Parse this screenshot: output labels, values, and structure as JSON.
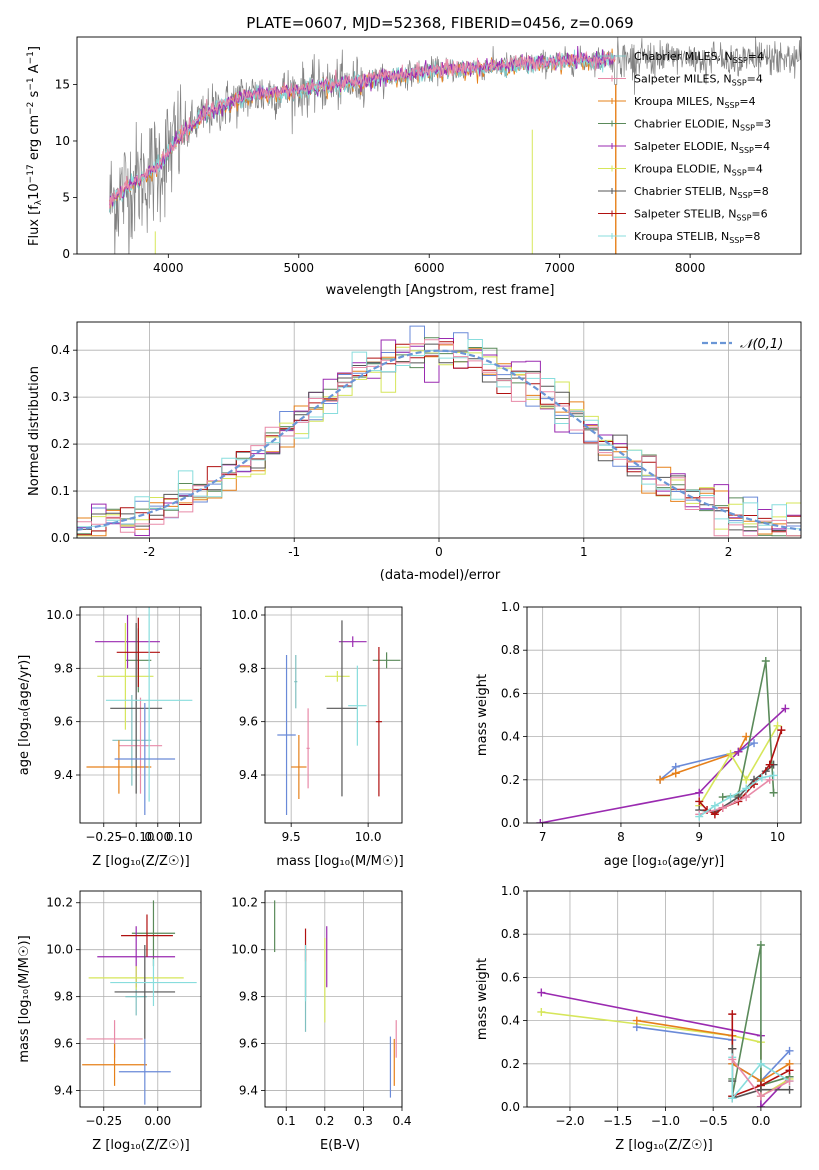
{
  "title": "PLATE=0607, MJD=52368, FIBERID=0456, z=0.069",
  "colors": [
    "#7fbfbf",
    "#e88aa8",
    "#e6801a",
    "#5a8a5a",
    "#9a2ab0",
    "#d6e65a",
    "#555555",
    "#b01010",
    "#88dddd",
    "#6a8ad8"
  ],
  "chart_data": [
    {
      "id": "spectrum",
      "type": "line",
      "title": "PLATE=0607, MJD=52368, FIBERID=0456, z=0.069",
      "xlabel": "wavelength [Angstrom, rest frame]",
      "ylabel": "Flux [fλ10⁻¹⁷ erg cm⁻² s⁻¹ A⁻¹]",
      "xlim": [
        3300,
        8850
      ],
      "ylim": [
        0,
        19.2
      ],
      "xticks": [
        4000,
        5000,
        6000,
        7000,
        8000
      ],
      "yticks": [
        0,
        5,
        10,
        15
      ],
      "grid": false,
      "legend_position": "right",
      "legend": [
        "Chabrier MILES, N_SSP=4",
        "Salpeter MILES, N_SSP=4",
        "Kroupa MILES, N_SSP=4",
        "Chabrier ELODIE, N_SSP=3",
        "Salpeter ELODIE, N_SSP=4",
        "Kroupa ELODIE, N_SSP=4",
        "Chabrier STELIB, N_SSP=8",
        "Salpeter STELIB, N_SSP=6",
        "Kroupa STELIB, N_SSP=8"
      ],
      "continuum": {
        "x": [
          3550,
          3700,
          3900,
          4100,
          4300,
          4600,
          5000,
          5500,
          6000,
          6500,
          7000,
          7400,
          7420
        ],
        "y": [
          4.5,
          6,
          7.5,
          10.5,
          12.5,
          14,
          14.5,
          15.3,
          16.2,
          16.6,
          17,
          17.3,
          17.3
        ]
      }
    },
    {
      "id": "residuals",
      "type": "histogram",
      "xlabel": "(data-model)/error",
      "ylabel": "Normed distribution",
      "xlim": [
        -2.5,
        2.5
      ],
      "ylim": [
        0,
        0.46
      ],
      "xticks": [
        -2,
        -1,
        0,
        1,
        2
      ],
      "yticks": [
        0.0,
        0.1,
        0.2,
        0.3,
        0.4
      ],
      "grid": true,
      "legend": "𝒩(0,1)",
      "legend_position": "top-right",
      "bin_width": 0.1
    },
    {
      "id": "age_vs_Z",
      "type": "errorbar",
      "xlabel": "Z [log₁₀(Z/Z☉)]",
      "ylabel": "age  [log₁₀(age/yr)]",
      "xlim": [
        -0.36,
        0.2
      ],
      "ylim": [
        9.22,
        10.03
      ],
      "xticks": [
        -0.25,
        -0.1,
        0.0,
        0.1
      ],
      "xtick_labels": [
        "−0.25",
        "−0.10",
        "0.00",
        "0.10"
      ],
      "yticks": [
        9.4,
        9.6,
        9.8,
        10.0
      ],
      "grid": true,
      "points": [
        {
          "c": 0,
          "x": -0.12,
          "y": 9.53,
          "xe": 0.09,
          "ye": 0.17
        },
        {
          "c": 1,
          "x": -0.08,
          "y": 9.51,
          "xe": 0.1,
          "ye": 0.18
        },
        {
          "c": 2,
          "x": -0.18,
          "y": 9.43,
          "xe": 0.15,
          "ye": 0.1
        },
        {
          "c": 3,
          "x": -0.09,
          "y": 9.83,
          "xe": 0.06,
          "ye": 0.12
        },
        {
          "c": 4,
          "x": -0.14,
          "y": 9.9,
          "xe": 0.15,
          "ye": 0.1
        },
        {
          "c": 5,
          "x": -0.15,
          "y": 9.77,
          "xe": 0.13,
          "ye": 0.2
        },
        {
          "c": 6,
          "x": -0.1,
          "y": 9.65,
          "xe": 0.12,
          "ye": 0.32
        },
        {
          "c": 7,
          "x": -0.09,
          "y": 9.86,
          "xe": 0.1,
          "ye": 0.13
        },
        {
          "c": 8,
          "x": -0.04,
          "y": 9.68,
          "xe": 0.2,
          "ye": 0.38
        },
        {
          "c": 9,
          "x": -0.06,
          "y": 9.46,
          "xe": 0.14,
          "ye": 0.21
        }
      ]
    },
    {
      "id": "age_vs_mass",
      "type": "errorbar",
      "xlabel": "mass [log₁₀(M/M☉)]",
      "ylabel": "",
      "xlim": [
        9.33,
        10.22
      ],
      "ylim": [
        9.22,
        10.03
      ],
      "xticks": [
        9.5,
        10.0
      ],
      "xtick_labels": [
        "9.5",
        "10.0"
      ],
      "yticks": [
        9.4,
        9.6,
        9.8,
        10.0
      ],
      "grid": true,
      "points": [
        {
          "c": 0,
          "x": 9.53,
          "y": 9.75,
          "xe": 0.01,
          "ye": 0.1
        },
        {
          "c": 1,
          "x": 9.61,
          "y": 9.5,
          "xe": 0.01,
          "ye": 0.15
        },
        {
          "c": 2,
          "x": 9.55,
          "y": 9.43,
          "xe": 0.05,
          "ye": 0.12
        },
        {
          "c": 3,
          "x": 10.12,
          "y": 9.83,
          "xe": 0.09,
          "ye": 0.03
        },
        {
          "c": 4,
          "x": 9.9,
          "y": 9.9,
          "xe": 0.09,
          "ye": 0.02
        },
        {
          "c": 5,
          "x": 9.8,
          "y": 9.77,
          "xe": 0.08,
          "ye": 0.02
        },
        {
          "c": 6,
          "x": 9.83,
          "y": 9.65,
          "xe": 0.1,
          "ye": 0.33
        },
        {
          "c": 7,
          "x": 10.07,
          "y": 9.6,
          "xe": 0.02,
          "ye": 0.28
        },
        {
          "c": 8,
          "x": 9.93,
          "y": 9.66,
          "xe": 0.06,
          "ye": 0.15
        },
        {
          "c": 9,
          "x": 9.47,
          "y": 9.55,
          "xe": 0.06,
          "ye": 0.3
        }
      ]
    },
    {
      "id": "weight_vs_age",
      "type": "line",
      "xlabel": "age  [log₁₀(age/yr)]",
      "ylabel": "mass weight",
      "xlim": [
        6.8,
        10.3
      ],
      "ylim": [
        0,
        1
      ],
      "xticks": [
        7,
        8,
        9,
        10
      ],
      "yticks": [
        0.0,
        0.2,
        0.4,
        0.6,
        0.8,
        1.0
      ],
      "grid": true,
      "series": [
        {
          "c": 9,
          "x": [
            8.5,
            8.7,
            9.5,
            9.7
          ],
          "y": [
            0.2,
            0.26,
            0.33,
            0.37
          ]
        },
        {
          "c": 2,
          "x": [
            8.5,
            8.7,
            9.5,
            9.6
          ],
          "y": [
            0.2,
            0.23,
            0.33,
            0.4
          ]
        },
        {
          "c": 4,
          "x": [
            6.97,
            9.0,
            9.5,
            10.1
          ],
          "y": [
            0.0,
            0.14,
            0.33,
            0.53
          ]
        },
        {
          "c": 5,
          "x": [
            9.0,
            9.4,
            9.6,
            10.0
          ],
          "y": [
            0.08,
            0.32,
            0.2,
            0.45
          ]
        },
        {
          "c": 3,
          "x": [
            9.3,
            9.5,
            9.85,
            9.95
          ],
          "y": [
            0.12,
            0.13,
            0.75,
            0.14
          ]
        },
        {
          "c": 6,
          "x": [
            9.0,
            9.2,
            9.5,
            9.7,
            9.85,
            9.95
          ],
          "y": [
            0.06,
            0.05,
            0.12,
            0.2,
            0.24,
            0.27
          ]
        },
        {
          "c": 7,
          "x": [
            9.0,
            9.1,
            9.2,
            9.3,
            9.5,
            9.7,
            9.9,
            10.05
          ],
          "y": [
            0.1,
            0.06,
            0.04,
            0.07,
            0.1,
            0.18,
            0.27,
            0.43
          ]
        },
        {
          "c": 1,
          "x": [
            9.0,
            9.3,
            9.6,
            9.9
          ],
          "y": [
            0.04,
            0.07,
            0.12,
            0.2
          ]
        },
        {
          "c": 8,
          "x": [
            9.0,
            9.2,
            9.4,
            9.6,
            9.8,
            9.95
          ],
          "y": [
            0.03,
            0.08,
            0.12,
            0.16,
            0.21,
            0.22
          ]
        }
      ]
    },
    {
      "id": "mass_vs_Z",
      "type": "errorbar",
      "xlabel": "Z [log₁₀(Z/Z☉)]",
      "ylabel": "mass [log₁₀(M/M☉)]",
      "xlim": [
        -0.36,
        0.2
      ],
      "ylim": [
        9.33,
        10.25
      ],
      "xticks": [
        -0.25,
        0.0
      ],
      "xtick_labels": [
        "−0.25",
        "0.00"
      ],
      "yticks": [
        9.4,
        9.6,
        9.8,
        10.0,
        10.2
      ],
      "grid": true,
      "points": [
        {
          "c": 0,
          "x": -0.1,
          "y": 9.8,
          "xe": 0.05,
          "ye": 0.08
        },
        {
          "c": 1,
          "x": -0.2,
          "y": 9.62,
          "xe": 0.13,
          "ye": 0.08
        },
        {
          "c": 2,
          "x": -0.2,
          "y": 9.51,
          "xe": 0.15,
          "ye": 0.09
        },
        {
          "c": 3,
          "x": -0.02,
          "y": 10.07,
          "xe": 0.1,
          "ye": 0.14
        },
        {
          "c": 4,
          "x": -0.1,
          "y": 9.97,
          "xe": 0.18,
          "ye": 0.13
        },
        {
          "c": 5,
          "x": -0.1,
          "y": 9.88,
          "xe": 0.22,
          "ye": 0.05
        },
        {
          "c": 6,
          "x": -0.06,
          "y": 9.82,
          "xe": 0.14,
          "ye": 0.2
        },
        {
          "c": 7,
          "x": -0.05,
          "y": 10.06,
          "xe": 0.12,
          "ye": 0.09
        },
        {
          "c": 8,
          "x": -0.02,
          "y": 9.86,
          "xe": 0.2,
          "ye": 0.1
        },
        {
          "c": 9,
          "x": -0.06,
          "y": 9.48,
          "xe": 0.12,
          "ye": 0.14
        }
      ]
    },
    {
      "id": "mass_vs_EBV",
      "type": "errorbar",
      "xlabel": "E(B-V)",
      "ylabel": "",
      "xlim": [
        0.045,
        0.4
      ],
      "ylim": [
        9.33,
        10.25
      ],
      "xticks": [
        0.1,
        0.2,
        0.3,
        0.4
      ],
      "xtick_labels": [
        "0.1",
        "0.2",
        "0.3",
        "0.4"
      ],
      "yticks": [
        9.4,
        9.6,
        9.8,
        10.0,
        10.2
      ],
      "grid": true,
      "points": [
        {
          "c": 0,
          "x": 0.15,
          "y": 9.8,
          "xe": 0,
          "ye": 0.15
        },
        {
          "c": 1,
          "x": 0.385,
          "y": 9.62,
          "xe": 0,
          "ye": 0.08
        },
        {
          "c": 2,
          "x": 0.38,
          "y": 9.52,
          "xe": 0,
          "ye": 0.1
        },
        {
          "c": 3,
          "x": 0.07,
          "y": 10.1,
          "xe": 0,
          "ye": 0.11
        },
        {
          "c": 4,
          "x": 0.205,
          "y": 9.97,
          "xe": 0,
          "ye": 0.13
        },
        {
          "c": 5,
          "x": 0.2,
          "y": 9.87,
          "xe": 0,
          "ye": 0.18
        },
        {
          "c": 6,
          "x": 0.15,
          "y": 9.9,
          "xe": 0,
          "ye": 0.1
        },
        {
          "c": 7,
          "x": 0.15,
          "y": 10.02,
          "xe": 0,
          "ye": 0.07
        },
        {
          "c": 8,
          "x": 0.15,
          "y": 9.9,
          "xe": 0,
          "ye": 0.12
        },
        {
          "c": 9,
          "x": 0.37,
          "y": 9.5,
          "xe": 0,
          "ye": 0.13
        }
      ]
    },
    {
      "id": "weight_vs_Z",
      "type": "line",
      "xlabel": "Z [log₁₀(Z/Z☉)]",
      "ylabel": "mass weight",
      "xlim": [
        -2.45,
        0.42
      ],
      "ylim": [
        0,
        1
      ],
      "xticks": [
        -2.0,
        -1.5,
        -1.0,
        -0.5,
        0.0
      ],
      "xtick_labels": [
        "−2.0",
        "−1.5",
        "−1.0",
        "−0.5",
        "0.0"
      ],
      "yticks": [
        0.0,
        0.2,
        0.4,
        0.6,
        0.8,
        1.0
      ],
      "grid": true,
      "series": [
        {
          "c": 4,
          "x": [
            -2.3,
            0.0,
            0.0,
            0.3
          ],
          "y": [
            0.53,
            0.33,
            0.0,
            0.14
          ]
        },
        {
          "c": 5,
          "x": [
            -2.3,
            -0.3,
            0.0,
            0.0,
            0.3
          ],
          "y": [
            0.44,
            0.33,
            0.3,
            0.05,
            0.13
          ]
        },
        {
          "c": 9,
          "x": [
            -1.3,
            -0.3,
            -0.3,
            0.0,
            0.3
          ],
          "y": [
            0.37,
            0.31,
            0.2,
            0.12,
            0.26
          ]
        },
        {
          "c": 2,
          "x": [
            -1.3,
            -0.3,
            -0.3,
            0.0,
            0.3
          ],
          "y": [
            0.4,
            0.33,
            0.2,
            0.12,
            0.2
          ]
        },
        {
          "c": 3,
          "x": [
            -0.3,
            -0.3,
            0.0,
            0.0,
            0.3
          ],
          "y": [
            0.13,
            0.05,
            0.75,
            0.1,
            0.14
          ]
        },
        {
          "c": 7,
          "x": [
            -0.3,
            -0.3,
            -0.3,
            0.0,
            0.3
          ],
          "y": [
            0.43,
            0.27,
            0.05,
            0.1,
            0.17
          ]
        },
        {
          "c": 6,
          "x": [
            -0.3,
            -0.3,
            -0.3,
            0.0,
            0.3
          ],
          "y": [
            0.27,
            0.12,
            0.04,
            0.08,
            0.08
          ]
        },
        {
          "c": 8,
          "x": [
            -0.3,
            -0.3,
            0.0,
            0.3
          ],
          "y": [
            0.23,
            0.04,
            0.2,
            0.12
          ]
        },
        {
          "c": 1,
          "x": [
            -0.3,
            0.0,
            0.3
          ],
          "y": [
            0.22,
            0.05,
            0.12
          ]
        }
      ]
    }
  ]
}
